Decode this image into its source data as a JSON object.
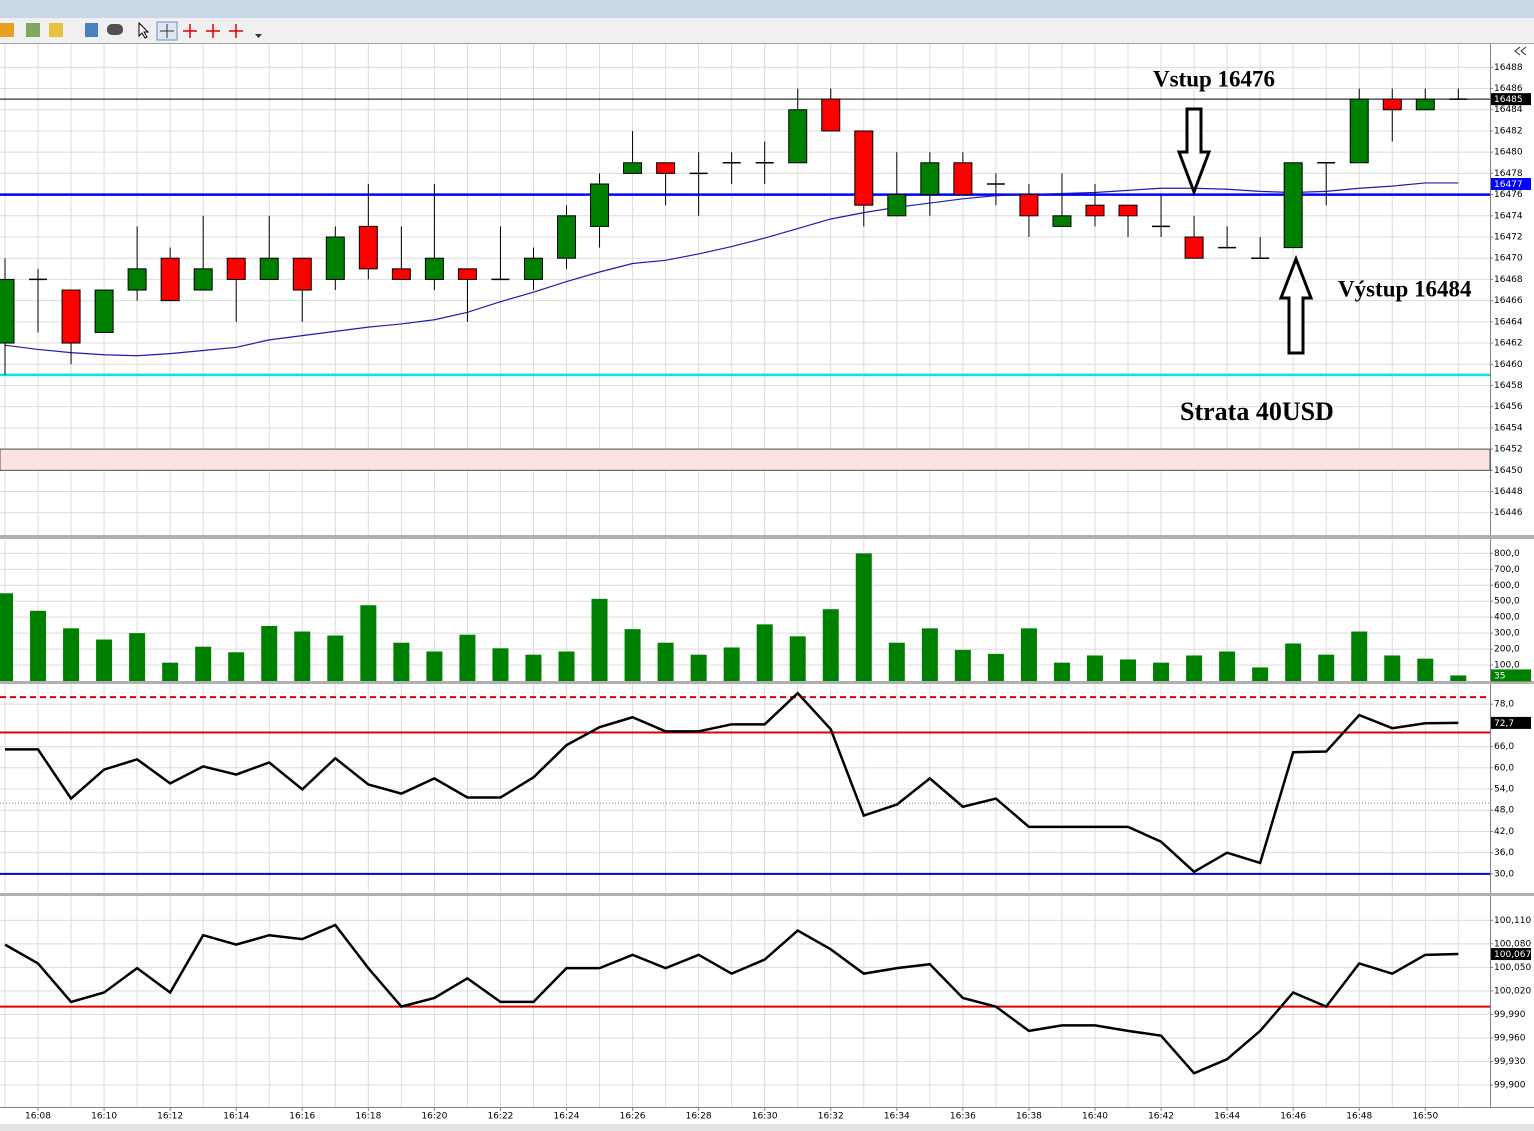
{
  "chart_data": [
    {
      "type": "candlestick",
      "open": [
        16462,
        16468,
        16467,
        16463,
        16467,
        16470,
        16467,
        16470,
        16468,
        16470,
        16468,
        16473,
        16469,
        16468,
        16469,
        16468,
        16468,
        16470,
        16473,
        16478,
        16479,
        16478,
        16479,
        16479,
        16479,
        16485,
        16482,
        16474,
        16476,
        16479,
        16477,
        16476,
        16473,
        16475,
        16475,
        16473,
        16472,
        16471,
        16470,
        16471,
        16479,
        16479,
        16485,
        16484,
        16485
      ],
      "high": [
        16470,
        16469,
        16467,
        16467,
        16473,
        16471,
        16474,
        16470,
        16474,
        16470,
        16473,
        16477,
        16473,
        16477,
        16469,
        16473,
        16471,
        16475,
        16478,
        16482,
        16479,
        16480,
        16480,
        16481,
        16486,
        16486,
        16482,
        16480,
        16480,
        16480,
        16478,
        16477,
        16478,
        16477,
        16475,
        16476,
        16474,
        16473,
        16472,
        16479,
        16479,
        16486,
        16486,
        16486,
        16486
      ],
      "low": [
        16459,
        16463,
        16460,
        16463,
        16466,
        16466,
        16467,
        16464,
        16468,
        16464,
        16467,
        16468,
        16468,
        16467,
        16464,
        16468,
        16467,
        16469,
        16471,
        16478,
        16475,
        16474,
        16477,
        16477,
        16479,
        16482,
        16473,
        16474,
        16474,
        16476,
        16475,
        16472,
        16473,
        16473,
        16472,
        16472,
        16470,
        16471,
        16470,
        16471,
        16475,
        16479,
        16481,
        16484,
        16485
      ],
      "close": [
        16468,
        16468,
        16462,
        16467,
        16469,
        16466,
        16469,
        16468,
        16470,
        16467,
        16472,
        16469,
        16468,
        16470,
        16468,
        16468,
        16470,
        16474,
        16477,
        16479,
        16478,
        16478,
        16479,
        16479,
        16484,
        16482,
        16475,
        16476,
        16479,
        16476,
        16477,
        16474,
        16474,
        16474,
        16474,
        16473,
        16470,
        16471,
        16470,
        16479,
        16479,
        16485,
        16484,
        16485,
        16485
      ],
      "up_color": "#008000",
      "down_color": "#ff0000",
      "ylim": [
        16443.9,
        16490.2
      ],
      "yticks": [
        16446,
        16448,
        16450,
        16452,
        16454,
        16456,
        16458,
        16460,
        16462,
        16464,
        16466,
        16468,
        16470,
        16472,
        16474,
        16476,
        16478,
        16480,
        16482,
        16484,
        16486,
        16488
      ],
      "grid": true,
      "ma": {
        "color": "#1c1cb4",
        "values": [
          16461.8,
          16461.4,
          16461.1,
          16460.9,
          16460.8,
          16461.0,
          16461.3,
          16461.6,
          16462.3,
          16462.7,
          16463.1,
          16463.5,
          16463.8,
          16464.2,
          16464.9,
          16465.9,
          16466.8,
          16467.8,
          16468.7,
          16469.5,
          16469.8,
          16470.4,
          16471.1,
          16471.9,
          16472.8,
          16473.7,
          16474.3,
          16474.8,
          16475.2,
          16475.6,
          16475.9,
          16476.0,
          16476.1,
          16476.2,
          16476.4,
          16476.6,
          16476.6,
          16476.5,
          16476.3,
          16476.2,
          16476.3,
          16476.6,
          16476.8,
          16477.1,
          16477.1
        ]
      },
      "lines": [
        {
          "value": 16485,
          "color": "#000000"
        },
        {
          "value": 16476,
          "color": "#0000ff"
        },
        {
          "value": 16459,
          "color": "#00e5ee"
        }
      ],
      "zone": {
        "from": 16450,
        "to": 16452,
        "color": "#fde2e2"
      },
      "markers": [
        {
          "value": 16485,
          "color": "#000000"
        },
        {
          "value": 16477,
          "color": "#0000ff"
        }
      ],
      "annotations": [
        "Vstup 16476",
        "Výstup 16484",
        "Strata 40USD"
      ]
    },
    {
      "type": "bar",
      "color": "#008000",
      "values": [
        550,
        440,
        330,
        260,
        300,
        115,
        215,
        180,
        345,
        310,
        285,
        475,
        240,
        185,
        290,
        205,
        165,
        185,
        515,
        325,
        240,
        165,
        210,
        355,
        280,
        450,
        800,
        240,
        330,
        195,
        170,
        330,
        115,
        160,
        135,
        115,
        160,
        185,
        85,
        235,
        165,
        310,
        160,
        140,
        35
      ],
      "ylim": [
        0,
        890
      ],
      "yticks": [
        {
          "value": 100,
          "label": "100,0"
        },
        {
          "value": 200,
          "label": "200,0"
        },
        {
          "value": 300,
          "label": "300,0"
        },
        {
          "value": 400,
          "label": "400,0"
        },
        {
          "value": 500,
          "label": "500,0"
        },
        {
          "value": 600,
          "label": "600,0"
        },
        {
          "value": 700,
          "label": "700,0"
        },
        {
          "value": 800,
          "label": "800,0"
        }
      ],
      "grid": true
    },
    {
      "type": "line",
      "color": "#000000",
      "values": [
        65.2,
        65.2,
        51.3,
        59.5,
        62.4,
        55.6,
        60.4,
        58.1,
        61.5,
        53.9,
        62.7,
        55.3,
        52.7,
        57.0,
        51.6,
        51.6,
        57.3,
        66.4,
        71.5,
        74.3,
        70.3,
        70.3,
        72.3,
        72.3,
        81.1,
        70.9,
        46.5,
        49.6,
        57.0,
        49.0,
        51.3,
        43.3,
        43.3,
        43.3,
        43.3,
        39.1,
        30.6,
        36.0,
        33.1,
        64.4,
        64.6,
        74.9,
        71.2,
        72.6,
        72.7
      ],
      "ylim": [
        24.6,
        83.7
      ],
      "yticks": [
        {
          "value": 30,
          "label": "30,0"
        },
        {
          "value": 36,
          "label": "36,0"
        },
        {
          "value": 42,
          "label": "42,0"
        },
        {
          "value": 48,
          "label": "48,0"
        },
        {
          "value": 54,
          "label": "54,0"
        },
        {
          "value": 60,
          "label": "60,0"
        },
        {
          "value": 66,
          "label": "66,0"
        },
        {
          "value": 78,
          "label": "78,0"
        }
      ],
      "grid": true,
      "levels": [
        {
          "value": 80,
          "color": "#e00000",
          "style": "dashed"
        },
        {
          "value": 70,
          "color": "#e00000",
          "style": "solid"
        },
        {
          "value": 50,
          "color": "#808080",
          "style": "dotted"
        },
        {
          "value": 30,
          "color": "#0000e0",
          "style": "solid"
        }
      ],
      "current": {
        "value": 72.7,
        "label": "72,7"
      }
    },
    {
      "type": "line",
      "color": "#000000",
      "values": [
        100.079,
        100.055,
        100.006,
        100.018,
        100.049,
        100.018,
        100.091,
        100.079,
        100.091,
        100.086,
        100.104,
        100.049,
        100,
        100.011,
        100.036,
        100.006,
        100.006,
        100.049,
        100.049,
        100.066,
        100.049,
        100.066,
        100.042,
        100.06,
        100.097,
        100.073,
        100.042,
        100.049,
        100.054,
        100.011,
        100,
        99.969,
        99.976,
        99.976,
        99.969,
        99.963,
        99.915,
        99.933,
        99.969,
        100.018,
        100,
        100.055,
        100.042,
        100.066,
        100.067
      ],
      "ylim": [
        99.872,
        100.141
      ],
      "yticks": [
        {
          "value": 99.9,
          "label": "99,900"
        },
        {
          "value": 99.93,
          "label": "99,930"
        },
        {
          "value": 99.96,
          "label": "99,960"
        },
        {
          "value": 99.99,
          "label": "99,990"
        },
        {
          "value": 100.02,
          "label": "100,020"
        },
        {
          "value": 100.05,
          "label": "100,050"
        },
        {
          "value": 100.08,
          "label": "100,080"
        },
        {
          "value": 100.11,
          "label": "100,110"
        }
      ],
      "grid": true,
      "levels": [
        {
          "value": 100,
          "color": "#e00000",
          "style": "solid"
        }
      ],
      "current": {
        "value": 100.067,
        "label": "100,067"
      },
      "categories": [
        null,
        "16:08",
        null,
        "16:10",
        null,
        "16:12",
        null,
        "16:14",
        null,
        "16:16",
        null,
        "16:18",
        null,
        "16:20",
        null,
        "16:22",
        null,
        "16:24",
        null,
        "16:26",
        null,
        "16:28",
        null,
        "16:30",
        null,
        "16:32",
        null,
        "16:34",
        null,
        "16:36",
        null,
        "16:38",
        null,
        "16:40",
        null,
        "16:42",
        null,
        "16:44",
        null,
        "16:46",
        null,
        "16:48",
        null,
        "16:50",
        null
      ]
    }
  ]
}
